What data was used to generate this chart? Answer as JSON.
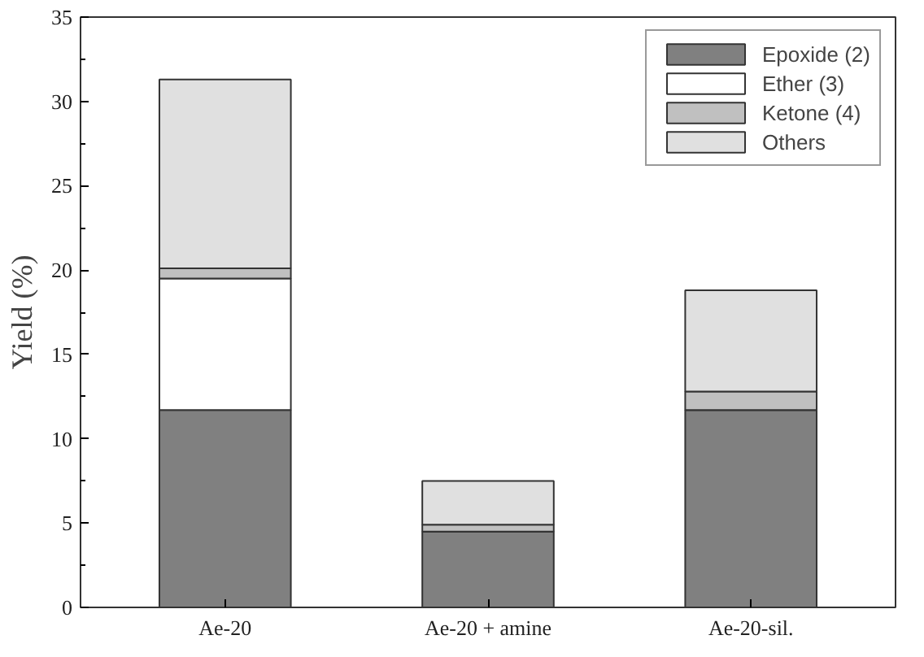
{
  "chart_data": {
    "type": "bar",
    "stacked": true,
    "ylabel": "Yield (%)",
    "categories": [
      "Ae-20",
      "Ae-20 + amine",
      "Ae-20-sil."
    ],
    "series": [
      {
        "name": "Epoxide (2)",
        "color": "#808080",
        "values": [
          11.7,
          4.5,
          11.7
        ]
      },
      {
        "name": "Ether (3)",
        "color": "#ffffff",
        "values": [
          7.8,
          0,
          0
        ]
      },
      {
        "name": "Ketone (4)",
        "color": "#c0c0c0",
        "values": [
          0.6,
          0.4,
          1.1
        ]
      },
      {
        "name": "Others",
        "color": "#e0e0e0",
        "values": [
          11.2,
          2.6,
          6.0
        ]
      }
    ],
    "ylim": [
      0,
      35
    ],
    "yticks": [
      0,
      5,
      10,
      15,
      20,
      25,
      30,
      35
    ],
    "grid": false,
    "legend": "top right"
  }
}
